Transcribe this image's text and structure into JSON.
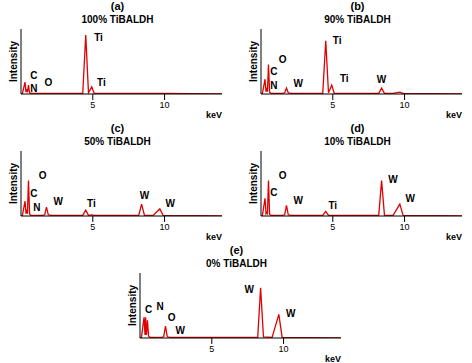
{
  "chart_data": [
    {
      "type": "line",
      "title": "(a)",
      "subtitle": "100% TiBALDH",
      "x_label": "keV",
      "y_label": "Intensity",
      "color": "#e00000",
      "grid": false,
      "tick_labels": "x",
      "xlim": [
        0,
        14
      ],
      "xticks": [
        5,
        10
      ],
      "ylim": [
        0,
        110
      ],
      "x": [
        0,
        0.1,
        0.28,
        0.35,
        0.39,
        0.45,
        0.52,
        0.6,
        0.7,
        1.5,
        1.65,
        1.775,
        1.9,
        2.1,
        4.3,
        4.51,
        4.7,
        4.93,
        5.1,
        8.2,
        8.4,
        8.6,
        9.2,
        9.67,
        9.9,
        14
      ],
      "values": [
        0,
        1,
        20,
        3,
        8,
        3,
        15,
        2,
        1,
        1,
        1,
        1,
        1,
        1,
        1,
        100,
        2,
        12,
        1,
        1,
        1,
        1,
        1,
        1,
        1,
        0
      ],
      "annotations": [
        {
          "text": "C",
          "x": 0.9,
          "y": 32
        },
        {
          "text": "N",
          "x": 0.9,
          "y": 10
        },
        {
          "text": "O",
          "x": 1.9,
          "y": 20
        },
        {
          "text": "Ti",
          "x": 5.4,
          "y": 95
        },
        {
          "text": "Ti",
          "x": 5.6,
          "y": 20
        }
      ]
    },
    {
      "type": "line",
      "title": "(b)",
      "subtitle": "90% TiBALDH",
      "x_label": "keV",
      "y_label": "Intensity",
      "color": "#e00000",
      "grid": false,
      "tick_labels": "x",
      "xlim": [
        0,
        14
      ],
      "xticks": [
        5,
        10
      ],
      "ylim": [
        0,
        110
      ],
      "x": [
        0,
        0.1,
        0.28,
        0.35,
        0.39,
        0.45,
        0.52,
        0.6,
        0.7,
        1.5,
        1.65,
        1.775,
        1.9,
        2.1,
        4.3,
        4.51,
        4.7,
        4.93,
        5.1,
        8.2,
        8.4,
        8.6,
        9.2,
        9.67,
        9.9,
        14
      ],
      "values": [
        0,
        1,
        25,
        4,
        8,
        4,
        50,
        3,
        1,
        1,
        2,
        10,
        2,
        1,
        1,
        90,
        2,
        15,
        1,
        1,
        10,
        1,
        1,
        3,
        1,
        0
      ],
      "annotations": [
        {
          "text": "C",
          "x": 0.9,
          "y": 38
        },
        {
          "text": "N",
          "x": 0.9,
          "y": 14
        },
        {
          "text": "O",
          "x": 1.5,
          "y": 58
        },
        {
          "text": "W",
          "x": 2.6,
          "y": 18
        },
        {
          "text": "Ti",
          "x": 5.3,
          "y": 90
        },
        {
          "text": "Ti",
          "x": 5.8,
          "y": 26
        },
        {
          "text": "W",
          "x": 8.4,
          "y": 24
        }
      ]
    },
    {
      "type": "line",
      "title": "(c)",
      "subtitle": "50% TiBALDH",
      "x_label": "keV",
      "y_label": "Intensity",
      "color": "#e00000",
      "grid": false,
      "tick_labels": "x",
      "xlim": [
        0,
        14
      ],
      "xticks": [
        5,
        10
      ],
      "ylim": [
        0,
        110
      ],
      "x": [
        0,
        0.1,
        0.28,
        0.35,
        0.39,
        0.45,
        0.52,
        0.6,
        0.7,
        1.5,
        1.65,
        1.775,
        1.9,
        2.1,
        4.3,
        4.51,
        4.7,
        4.93,
        5.1,
        8.2,
        8.4,
        8.6,
        9.2,
        9.67,
        9.9,
        14
      ],
      "values": [
        0,
        1,
        25,
        4,
        8,
        4,
        60,
        3,
        1,
        1,
        2,
        15,
        2,
        1,
        1,
        10,
        1,
        2,
        1,
        1,
        20,
        1,
        1,
        12,
        1,
        0
      ],
      "annotations": [
        {
          "text": "C",
          "x": 0.9,
          "y": 38
        },
        {
          "text": "N",
          "x": 1.1,
          "y": 14
        },
        {
          "text": "O",
          "x": 1.5,
          "y": 68
        },
        {
          "text": "W",
          "x": 2.6,
          "y": 24
        },
        {
          "text": "Ti",
          "x": 4.9,
          "y": 22
        },
        {
          "text": "W",
          "x": 8.6,
          "y": 34
        },
        {
          "text": "W",
          "x": 10.4,
          "y": 22
        }
      ]
    },
    {
      "type": "line",
      "title": "(d)",
      "subtitle": "10% TiBALDH",
      "x_label": "keV",
      "y_label": "Intensity",
      "color": "#e00000",
      "grid": false,
      "tick_labels": "x",
      "xlim": [
        0,
        14
      ],
      "xticks": [
        5,
        10
      ],
      "ylim": [
        0,
        110
      ],
      "x": [
        0,
        0.1,
        0.28,
        0.35,
        0.39,
        0.45,
        0.52,
        0.6,
        0.7,
        1.5,
        1.65,
        1.775,
        1.9,
        2.1,
        4.3,
        4.51,
        4.7,
        4.93,
        5.1,
        8.2,
        8.4,
        8.6,
        9.2,
        9.67,
        9.9,
        14
      ],
      "values": [
        0,
        1,
        30,
        4,
        6,
        4,
        60,
        3,
        1,
        1,
        2,
        18,
        2,
        1,
        1,
        8,
        1,
        1,
        1,
        1,
        60,
        1,
        1,
        20,
        1,
        0
      ],
      "annotations": [
        {
          "text": "C",
          "x": 0.9,
          "y": 40
        },
        {
          "text": "O",
          "x": 1.5,
          "y": 68
        },
        {
          "text": "W",
          "x": 2.6,
          "y": 26
        },
        {
          "text": "Ti",
          "x": 5.0,
          "y": 18
        },
        {
          "text": "W",
          "x": 9.2,
          "y": 62
        },
        {
          "text": "W",
          "x": 10.4,
          "y": 30
        }
      ]
    },
    {
      "type": "line",
      "title": "(e)",
      "subtitle": "0% TiBALDH",
      "x_label": "keV",
      "y_label": "Intensity",
      "color": "#e00000",
      "grid": false,
      "tick_labels": "x",
      "xlim": [
        0,
        14
      ],
      "xticks": [
        5,
        10
      ],
      "ylim": [
        0,
        110
      ],
      "x": [
        0,
        0.1,
        0.28,
        0.35,
        0.39,
        0.45,
        0.52,
        0.6,
        0.7,
        1.5,
        1.65,
        1.775,
        1.9,
        2.1,
        4.3,
        4.51,
        4.7,
        4.93,
        5.1,
        8.2,
        8.4,
        8.6,
        9.2,
        9.67,
        9.9,
        14
      ],
      "values": [
        0,
        1,
        35,
        5,
        35,
        5,
        30,
        3,
        1,
        1,
        2,
        20,
        2,
        1,
        1,
        1,
        1,
        1,
        1,
        1,
        85,
        2,
        1,
        40,
        1,
        0
      ],
      "annotations": [
        {
          "text": "C",
          "x": 0.6,
          "y": 48
        },
        {
          "text": "N",
          "x": 1.4,
          "y": 54
        },
        {
          "text": "O",
          "x": 2.2,
          "y": 34
        },
        {
          "text": "W",
          "x": 2.8,
          "y": 12
        },
        {
          "text": "W",
          "x": 7.6,
          "y": 82
        },
        {
          "text": "W",
          "x": 10.5,
          "y": 42
        }
      ]
    }
  ]
}
